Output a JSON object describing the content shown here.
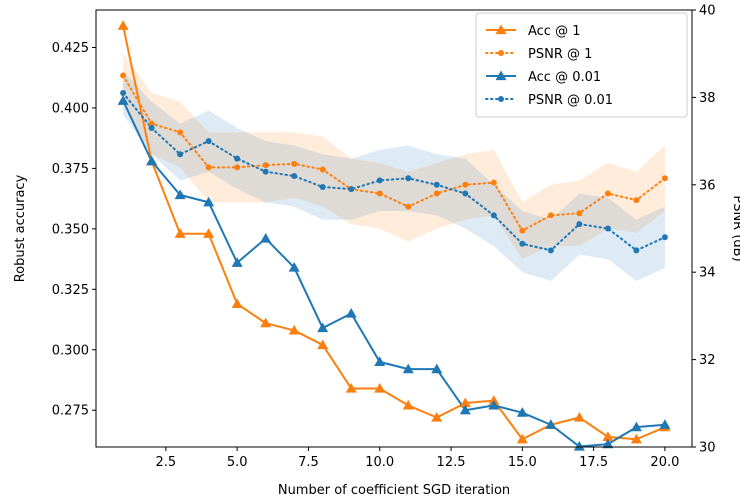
{
  "chart_data": {
    "type": "line",
    "xlabel": "Number of coefficient SGD iteration",
    "ylabel": "Robust accuracy",
    "y2label": "PSNR (dB)",
    "xlim": [
      0.05,
      20.95
    ],
    "ylim": [
      0.2598,
      0.4405
    ],
    "y2lim": [
      30,
      40
    ],
    "x_ticks": [
      2.5,
      5.0,
      7.5,
      10.0,
      12.5,
      15.0,
      17.5,
      20.0
    ],
    "x_tick_labels": [
      "2.5",
      "5.0",
      "7.5",
      "10.0",
      "12.5",
      "15.0",
      "17.5",
      "20.0"
    ],
    "y_ticks": [
      0.275,
      0.3,
      0.325,
      0.35,
      0.375,
      0.4,
      0.425
    ],
    "y_tick_labels": [
      "0.275",
      "0.300",
      "0.325",
      "0.350",
      "0.375",
      "0.400",
      "0.425"
    ],
    "y2_ticks": [
      30,
      32,
      34,
      36,
      38,
      40
    ],
    "y2_tick_labels": [
      "30",
      "32",
      "34",
      "36",
      "38",
      "40"
    ],
    "legend_position": "top-right",
    "x": [
      1,
      2,
      3,
      4,
      5,
      6,
      7,
      8,
      9,
      10,
      11,
      12,
      13,
      14,
      15,
      16,
      17,
      18,
      19,
      20
    ],
    "series": [
      {
        "name": "Acc @ 1",
        "axis": "left",
        "color": "#ff7f0e",
        "style": "solid",
        "marker": "triangle",
        "values": [
          0.434,
          0.378,
          0.348,
          0.348,
          0.319,
          0.311,
          0.308,
          0.302,
          0.284,
          0.284,
          0.277,
          0.272,
          0.278,
          0.279,
          0.263,
          0.269,
          0.272,
          0.264,
          0.263,
          0.268
        ]
      },
      {
        "name": "PSNR @ 1",
        "axis": "right",
        "color": "#ff7f0e",
        "style": "dotted",
        "marker": "circle",
        "values": [
          38.5,
          37.4,
          37.2,
          36.4,
          36.4,
          36.45,
          36.48,
          36.35,
          35.9,
          35.8,
          35.5,
          35.8,
          36.0,
          36.05,
          34.95,
          35.3,
          35.35,
          35.8,
          35.65,
          36.15
        ],
        "band_lower": [
          37.9,
          36.7,
          36.4,
          35.6,
          35.6,
          35.6,
          35.7,
          35.5,
          35.1,
          35.0,
          34.7,
          35.0,
          35.2,
          35.3,
          34.3,
          34.6,
          34.6,
          35.0,
          34.9,
          35.4
        ],
        "band_upper": [
          39.0,
          38.1,
          37.9,
          37.2,
          37.2,
          37.2,
          37.2,
          37.1,
          36.6,
          36.5,
          36.3,
          36.5,
          36.7,
          36.8,
          35.6,
          36.0,
          36.1,
          36.5,
          36.3,
          36.9
        ]
      },
      {
        "name": "Acc @ 0.01",
        "axis": "left",
        "color": "#1f77b4",
        "style": "solid",
        "marker": "triangle",
        "values": [
          0.403,
          0.378,
          0.364,
          0.361,
          0.336,
          0.346,
          0.334,
          0.309,
          0.315,
          0.295,
          0.292,
          0.292,
          0.275,
          0.277,
          0.274,
          0.269,
          0.26,
          0.261,
          0.268,
          0.269
        ]
      },
      {
        "name": "PSNR @ 0.01",
        "axis": "right",
        "color": "#1f77b4",
        "style": "dotted",
        "marker": "circle",
        "values": [
          38.1,
          37.3,
          36.7,
          37.0,
          36.6,
          36.3,
          36.2,
          35.95,
          35.9,
          36.1,
          36.15,
          36.0,
          35.8,
          35.3,
          34.65,
          34.5,
          35.1,
          35.0,
          34.5,
          34.8
        ],
        "band_lower": [
          37.6,
          36.7,
          36.1,
          36.3,
          35.9,
          35.6,
          35.5,
          35.2,
          35.2,
          35.4,
          35.4,
          35.3,
          35.0,
          34.6,
          34.0,
          33.8,
          34.4,
          34.3,
          33.8,
          34.1
        ],
        "band_upper": [
          38.6,
          37.9,
          37.4,
          37.7,
          37.3,
          37.0,
          36.9,
          36.7,
          36.6,
          36.8,
          36.9,
          36.7,
          36.6,
          36.0,
          35.4,
          35.2,
          35.8,
          35.7,
          35.2,
          35.5
        ]
      }
    ]
  }
}
